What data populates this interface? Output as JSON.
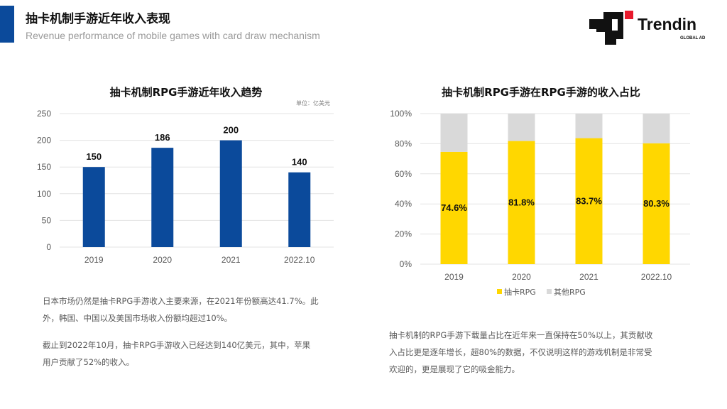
{
  "header": {
    "title": "抽卡机制手游近年收入表现",
    "subtitle": "Revenue performance of mobile games with card draw mechanism",
    "logo_text": "Trendin",
    "logo_sub": "GLOBAL AD"
  },
  "chart_data": [
    {
      "type": "bar",
      "title": "抽卡机制RPG手游近年收入趋势",
      "unit_label": "单位：亿美元",
      "categories": [
        "2019",
        "2020",
        "2021",
        "2022.10"
      ],
      "values": [
        150,
        186,
        200,
        140
      ],
      "ylim": [
        0,
        250
      ],
      "yticks": [
        0,
        50,
        100,
        150,
        200,
        250
      ],
      "grid": true,
      "color": "#0b4a9b"
    },
    {
      "type": "bar",
      "stacked": true,
      "percent": true,
      "title": "抽卡机制RPG手游在RPG手游的收入占比",
      "categories": [
        "2019",
        "2020",
        "2021",
        "2022.10"
      ],
      "series": [
        {
          "name": "抽卡RPG",
          "values": [
            74.6,
            81.8,
            83.7,
            80.3
          ],
          "labels": [
            "74.6%",
            "81.8%",
            "83.7%",
            "80.3%"
          ],
          "color": "#ffd700"
        },
        {
          "name": "其他RPG",
          "values": [
            25.4,
            18.2,
            16.3,
            19.7
          ],
          "color": "#d9d9d9"
        }
      ],
      "ylim": [
        0,
        100
      ],
      "ytick_labels": [
        "0%",
        "20%",
        "40%",
        "60%",
        "80%",
        "100%"
      ],
      "grid": true,
      "legend_position": "bottom"
    }
  ],
  "left_text": {
    "lines": [
      "日本市场仍然是抽卡RPG手游收入主要来源，在2021年份额高达41.7%。此",
      "外，韩国、中国以及美国市场收入份额均超过10%。",
      "",
      "截止到2022年10月，抽卡RPG手游收入已经达到140亿美元，其中，苹果",
      "用户贡献了52%的收入。"
    ]
  },
  "right_text": {
    "lines": [
      "抽卡机制的RPG手游下载量占比在近年来一直保持在50%以上，其贡献收",
      "入占比更是逐年增长，超80%的数据，不仅说明这样的游戏机制是非常受",
      "欢迎的，更是展现了它的吸金能力。"
    ]
  }
}
